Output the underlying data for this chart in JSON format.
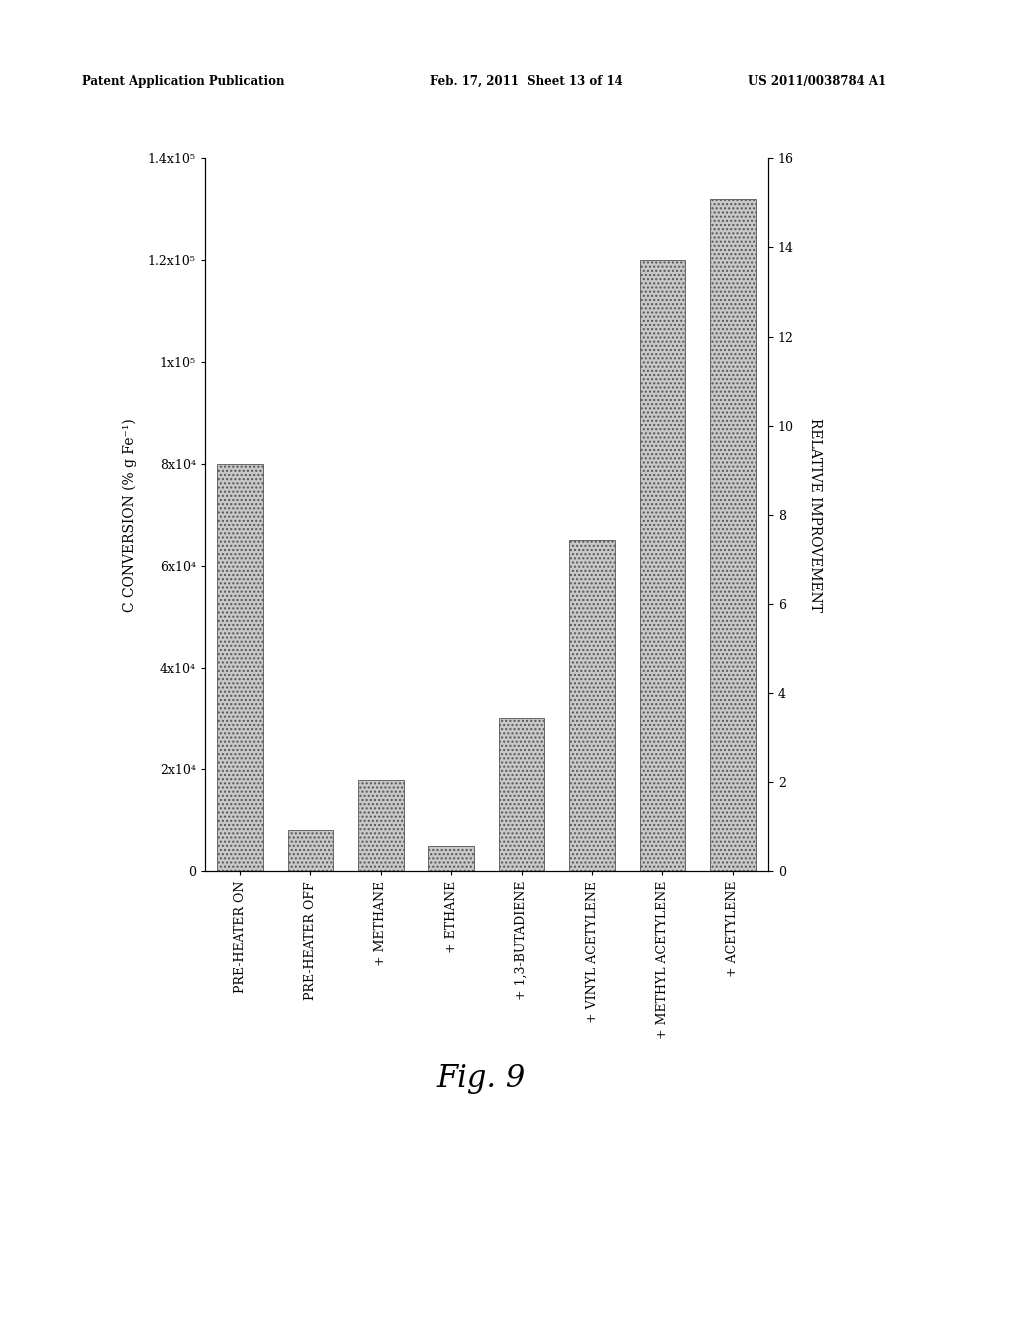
{
  "categories": [
    "PRE-HEATER ON",
    "PRE-HEATER OFF",
    "+ METHANE",
    "+ ETHANE",
    "+ 1,3-BUTADIENE",
    "+ VINYL ACETYLENE",
    "+ METHYL ACETYLENE",
    "+ ACETYLENE"
  ],
  "values": [
    80000,
    8000,
    18000,
    5000,
    30000,
    65000,
    120000,
    132000
  ],
  "bar_color": "#c8c8c8",
  "left_ylabel": "C CONVERSION (% g Fe⁻¹)",
  "right_ylabel": "RELATIVE IMPROVEMENT",
  "ylim_left": [
    0,
    140000
  ],
  "ylim_right": [
    0,
    16
  ],
  "yticks_left": [
    0,
    20000,
    40000,
    60000,
    80000,
    100000,
    120000,
    140000
  ],
  "ytick_labels_left": [
    "0",
    "2x10⁴",
    "4x10⁴",
    "6x10⁴",
    "8x10⁴",
    "1x10⁵",
    "1.2x10⁵",
    "1.4x10⁵"
  ],
  "yticks_right": [
    0,
    2,
    4,
    6,
    8,
    10,
    12,
    14,
    16
  ],
  "fig_width": 10.24,
  "fig_height": 13.2,
  "fig_caption": "Fig. 9",
  "header_left": "Patent Application Publication",
  "header_mid": "Feb. 17, 2011  Sheet 13 of 14",
  "header_right": "US 2011/0038784 A1",
  "background_color": "#ffffff"
}
